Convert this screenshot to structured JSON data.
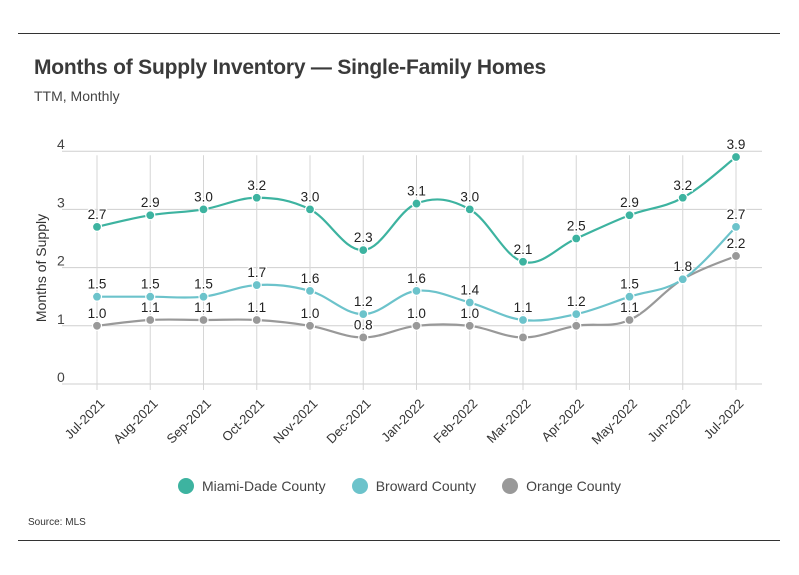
{
  "header": {
    "title": "Months of Supply Inventory — Single-Family Homes",
    "subtitle": "TTM, Monthly"
  },
  "footer": {
    "source": "Source:  MLS"
  },
  "chart_data": {
    "type": "line",
    "title": "Months of Supply Inventory — Single-Family Homes",
    "subtitle": "TTM, Monthly",
    "xlabel": "",
    "ylabel": "Months of Supply",
    "ylim": [
      0,
      4
    ],
    "yticks": [
      "0",
      "1",
      "2",
      "3",
      "4"
    ],
    "grid": true,
    "legend_position": "bottom",
    "categories": [
      "Jul-2021",
      "Aug-2021",
      "Sep-2021",
      "Oct-2021",
      "Nov-2021",
      "Dec-2021",
      "Jan-2022",
      "Feb-2022",
      "Mar-2022",
      "Apr-2022",
      "May-2022",
      "Jun-2022",
      "Jul-2022"
    ],
    "series": [
      {
        "name": "Miami-Dade County",
        "color": "#3db3a0",
        "values": [
          2.7,
          2.9,
          3.0,
          3.2,
          3.0,
          2.3,
          3.1,
          3.0,
          2.1,
          2.5,
          2.9,
          3.2,
          3.9
        ],
        "labels": [
          "2.7",
          "2.9",
          "3.0",
          "3.2",
          "3.0",
          "2.3",
          "3.1",
          "3.0",
          "2.1",
          "2.5",
          "2.9",
          "3.2",
          "3.9"
        ]
      },
      {
        "name": "Broward County",
        "color": "#6cc3cb",
        "values": [
          1.5,
          1.5,
          1.5,
          1.7,
          1.6,
          1.2,
          1.6,
          1.4,
          1.1,
          1.2,
          1.5,
          1.8,
          2.7
        ],
        "labels": [
          "1.5",
          "1.5",
          "1.5",
          "1.7",
          "1.6",
          "1.2",
          "1.6",
          "1.4",
          "1.1",
          "1.2",
          "1.5",
          "1.8",
          "2.7"
        ]
      },
      {
        "name": "Orange County",
        "color": "#999999",
        "values": [
          1.0,
          1.1,
          1.1,
          1.1,
          1.0,
          0.8,
          1.0,
          1.0,
          0.8,
          1.0,
          1.1,
          1.8,
          2.2
        ],
        "labels": [
          "1.0",
          "1.1",
          "1.1",
          "1.1",
          "1.0",
          "0.8",
          "1.0",
          "1.0",
          "",
          "",
          "1.1",
          "",
          "2.2"
        ]
      }
    ]
  }
}
